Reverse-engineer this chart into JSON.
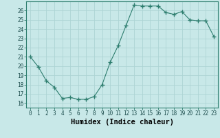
{
  "x": [
    0,
    1,
    2,
    3,
    4,
    5,
    6,
    7,
    8,
    9,
    10,
    11,
    12,
    13,
    14,
    15,
    16,
    17,
    18,
    19,
    20,
    21,
    22,
    23
  ],
  "y": [
    21,
    19.9,
    18.4,
    17.7,
    16.5,
    16.6,
    16.4,
    16.4,
    16.7,
    18.0,
    20.4,
    22.2,
    24.4,
    26.6,
    26.5,
    26.5,
    26.5,
    25.8,
    25.6,
    25.9,
    25.0,
    24.9,
    24.9,
    23.2
  ],
  "line_color": "#2d7d6e",
  "marker": "+",
  "marker_size": 4,
  "bg_color": "#c8e8e8",
  "grid_color": "#add4d4",
  "xlabel": "Humidex (Indice chaleur)",
  "xlim": [
    -0.5,
    23.5
  ],
  "ylim": [
    15.5,
    27
  ],
  "yticks": [
    16,
    17,
    18,
    19,
    20,
    21,
    22,
    23,
    24,
    25,
    26
  ],
  "xticks": [
    0,
    1,
    2,
    3,
    4,
    5,
    6,
    7,
    8,
    9,
    10,
    11,
    12,
    13,
    14,
    15,
    16,
    17,
    18,
    19,
    20,
    21,
    22,
    23
  ],
  "tick_label_fontsize": 5.5,
  "xlabel_fontsize": 7.5
}
